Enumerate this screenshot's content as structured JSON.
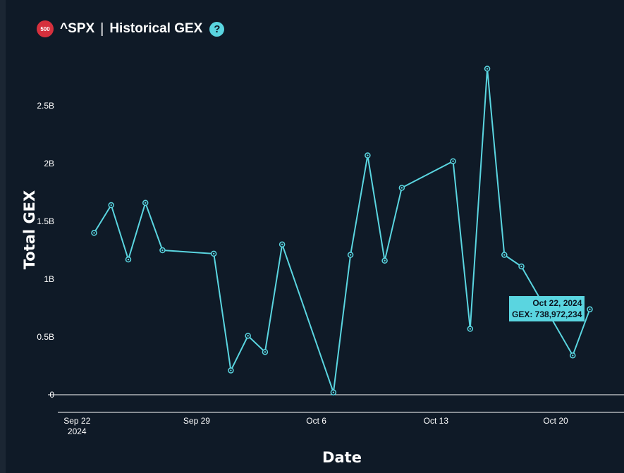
{
  "header": {
    "badge": "500",
    "ticker": "^SPX",
    "separator": "|",
    "title": "Historical GEX",
    "help": "?"
  },
  "colors": {
    "background": "#0f1a27",
    "line": "#5ad5e0",
    "badge": "#d6303d"
  },
  "tooltip": {
    "date": "Oct 22, 2024",
    "value": "GEX: 738,972,234"
  },
  "chart_data": {
    "type": "line",
    "title": "^SPX | Historical GEX",
    "xlabel": "Date",
    "ylabel": "Total GEX",
    "x_range": [
      "2024-09-21",
      "2024-10-24"
    ],
    "ylim": [
      0,
      2900000000
    ],
    "x_ticks": [
      {
        "date": "2024-09-22",
        "label": "Sep 22",
        "sublabel": "2024"
      },
      {
        "date": "2024-09-29",
        "label": "Sep 29",
        "sublabel": ""
      },
      {
        "date": "2024-10-06",
        "label": "Oct 6",
        "sublabel": ""
      },
      {
        "date": "2024-10-13",
        "label": "Oct 13",
        "sublabel": ""
      },
      {
        "date": "2024-10-20",
        "label": "Oct 20",
        "sublabel": ""
      }
    ],
    "y_ticks": [
      {
        "value": 0,
        "label": "0"
      },
      {
        "value": 500000000,
        "label": "0.5B"
      },
      {
        "value": 1000000000,
        "label": "1B"
      },
      {
        "value": 1500000000,
        "label": "1.5B"
      },
      {
        "value": 2000000000,
        "label": "2B"
      },
      {
        "value": 2500000000,
        "label": "2.5B"
      }
    ],
    "grid": false,
    "legend": "none",
    "series": [
      {
        "points": [
          {
            "x": "2024-09-23",
            "y": 1400000000
          },
          {
            "x": "2024-09-24",
            "y": 1640000000
          },
          {
            "x": "2024-09-25",
            "y": 1170000000
          },
          {
            "x": "2024-09-26",
            "y": 1660000000
          },
          {
            "x": "2024-09-27",
            "y": 1250000000
          },
          {
            "x": "2024-09-30",
            "y": 1220000000
          },
          {
            "x": "2024-10-01",
            "y": 210000000
          },
          {
            "x": "2024-10-02",
            "y": 510000000
          },
          {
            "x": "2024-10-03",
            "y": 370000000
          },
          {
            "x": "2024-10-04",
            "y": 1300000000
          },
          {
            "x": "2024-10-07",
            "y": 20000000
          },
          {
            "x": "2024-10-08",
            "y": 1210000000
          },
          {
            "x": "2024-10-09",
            "y": 2070000000
          },
          {
            "x": "2024-10-10",
            "y": 1160000000
          },
          {
            "x": "2024-10-11",
            "y": 1790000000
          },
          {
            "x": "2024-10-14",
            "y": 2020000000
          },
          {
            "x": "2024-10-15",
            "y": 570000000
          },
          {
            "x": "2024-10-16",
            "y": 2820000000
          },
          {
            "x": "2024-10-17",
            "y": 1210000000
          },
          {
            "x": "2024-10-18",
            "y": 1110000000
          },
          {
            "x": "2024-10-21",
            "y": 340000000
          },
          {
            "x": "2024-10-22",
            "y": 738972234
          }
        ]
      }
    ]
  }
}
